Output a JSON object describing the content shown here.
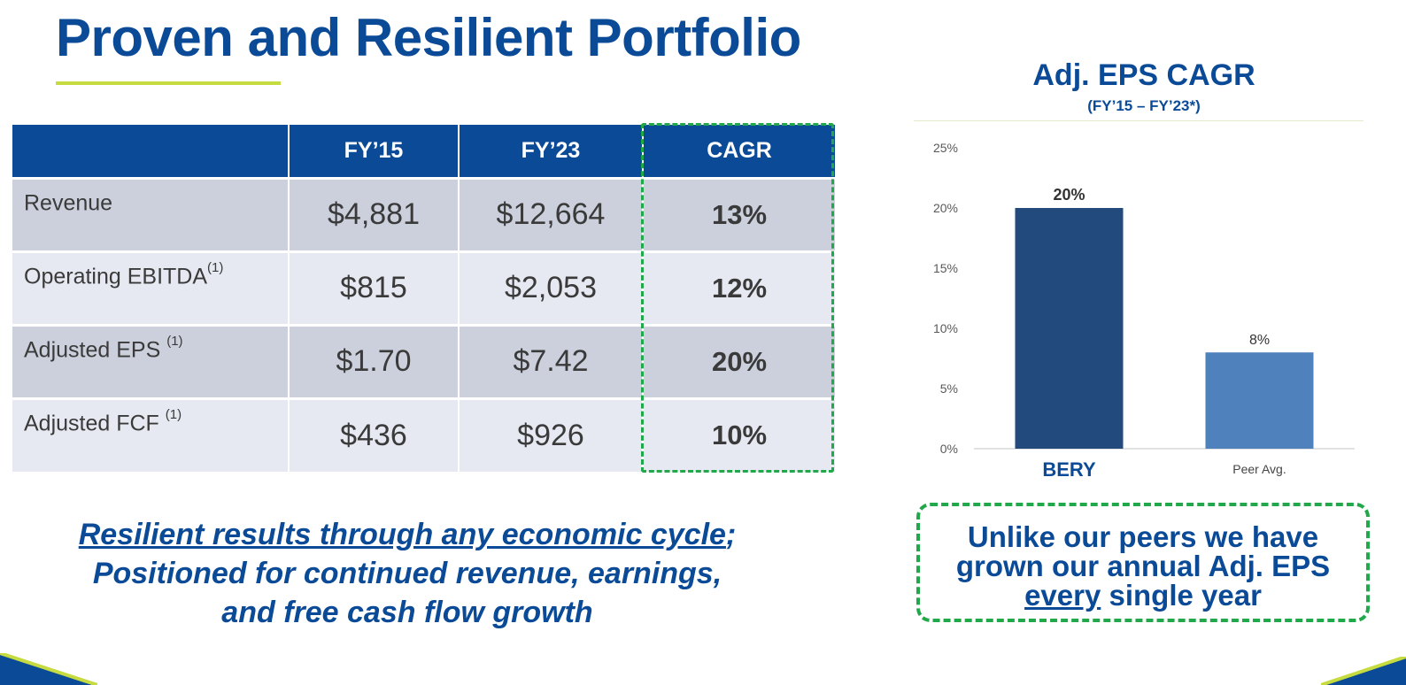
{
  "page": {
    "title": "Proven and Resilient Portfolio"
  },
  "table": {
    "headers": [
      "",
      "FY’15",
      "FY’23",
      "CAGR"
    ],
    "rows": [
      {
        "label": "Revenue",
        "note": "",
        "fy15": "$4,881",
        "fy23": "$12,664",
        "cagr": "13%"
      },
      {
        "label": "Operating EBITDA",
        "note": "(1)",
        "fy15": "$815",
        "fy23": "$2,053",
        "cagr": "12%"
      },
      {
        "label": "Adjusted EPS ",
        "note": "(1)",
        "fy15": "$1.70",
        "fy23": "$7.42",
        "cagr": "20%"
      },
      {
        "label": "Adjusted FCF ",
        "note": "(1)",
        "fy15": "$436",
        "fy23": "$926",
        "cagr": "10%"
      }
    ]
  },
  "tagline": {
    "line1": "Resilient results through any economic cycle",
    "line1_suffix": ";",
    "line2": "Positioned for continued revenue, earnings,",
    "line3": "and free cash flow growth"
  },
  "chart_data": {
    "type": "bar",
    "title": "Adj. EPS CAGR",
    "subtitle": "(FY’15 – FY’23*)",
    "categories": [
      "BERY",
      "Peer Avg."
    ],
    "values": [
      20,
      8
    ],
    "data_labels": [
      "20%",
      "8%"
    ],
    "yticks": [
      "0%",
      "5%",
      "10%",
      "15%",
      "20%",
      "25%"
    ],
    "ylim": [
      0,
      25
    ],
    "colors": [
      "#234a7c",
      "#4f81bd"
    ],
    "grid": false
  },
  "callout": {
    "line1": "Unlike our peers we have",
    "line2": "grown our annual Adj. EPS",
    "line3_underlined": "every",
    "line3_rest": " single year"
  },
  "colors": {
    "brand_blue": "#0a4a97",
    "accent_green": "#21a84a",
    "accent_lime": "#c6db3f"
  }
}
